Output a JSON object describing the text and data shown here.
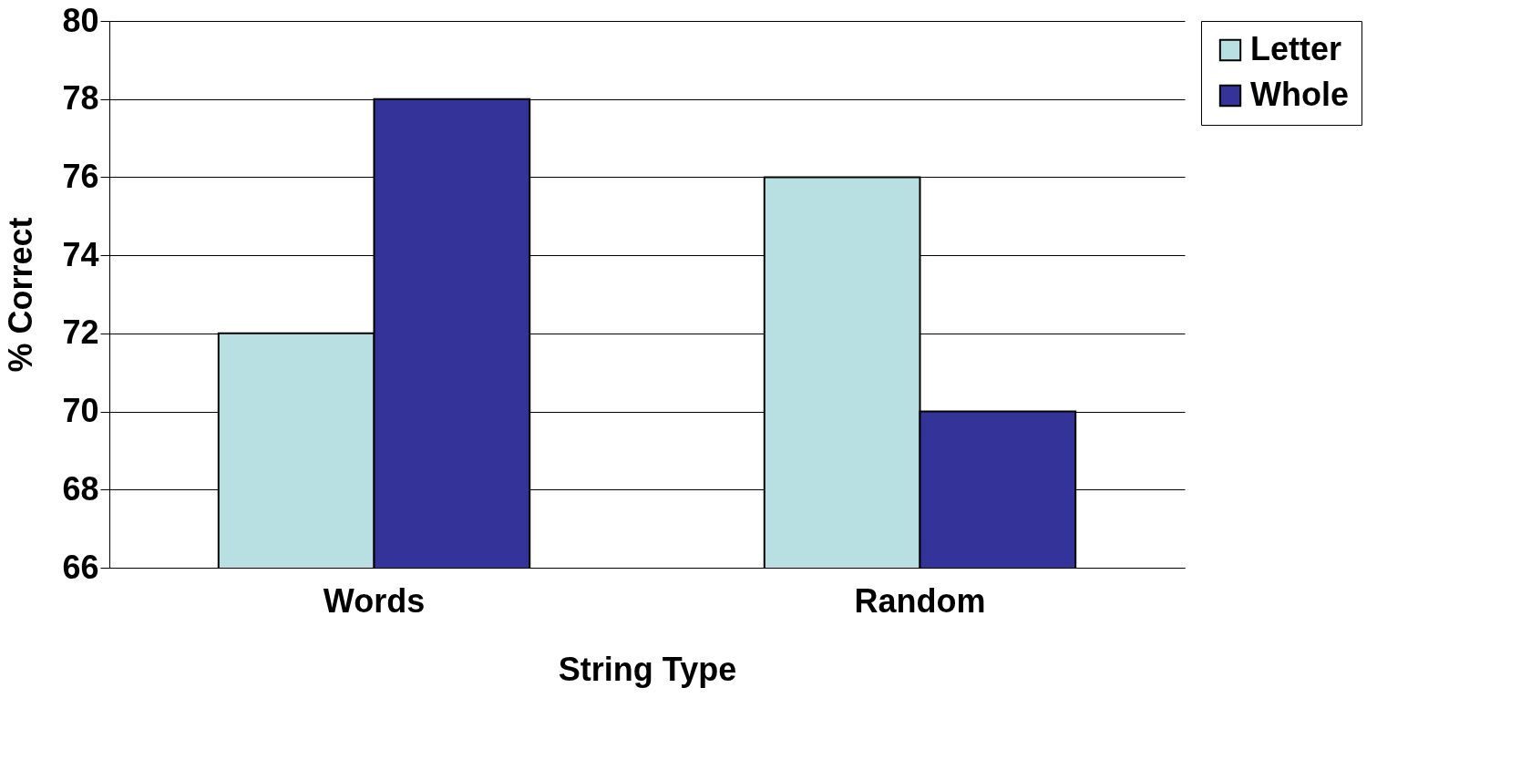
{
  "chart_data": {
    "type": "bar",
    "xlabel": "String Type",
    "ylabel": "% Correct",
    "categories": [
      "Words",
      "Random"
    ],
    "series": [
      {
        "name": "Letter",
        "color": "#b8e0e3",
        "values": [
          72,
          76
        ]
      },
      {
        "name": "Whole",
        "color": "#333399",
        "values": [
          78,
          70
        ]
      }
    ],
    "ylim": [
      66,
      80
    ],
    "yticks": [
      66,
      68,
      70,
      72,
      74,
      76,
      78,
      80
    ],
    "grid": "y",
    "legend": "right"
  }
}
